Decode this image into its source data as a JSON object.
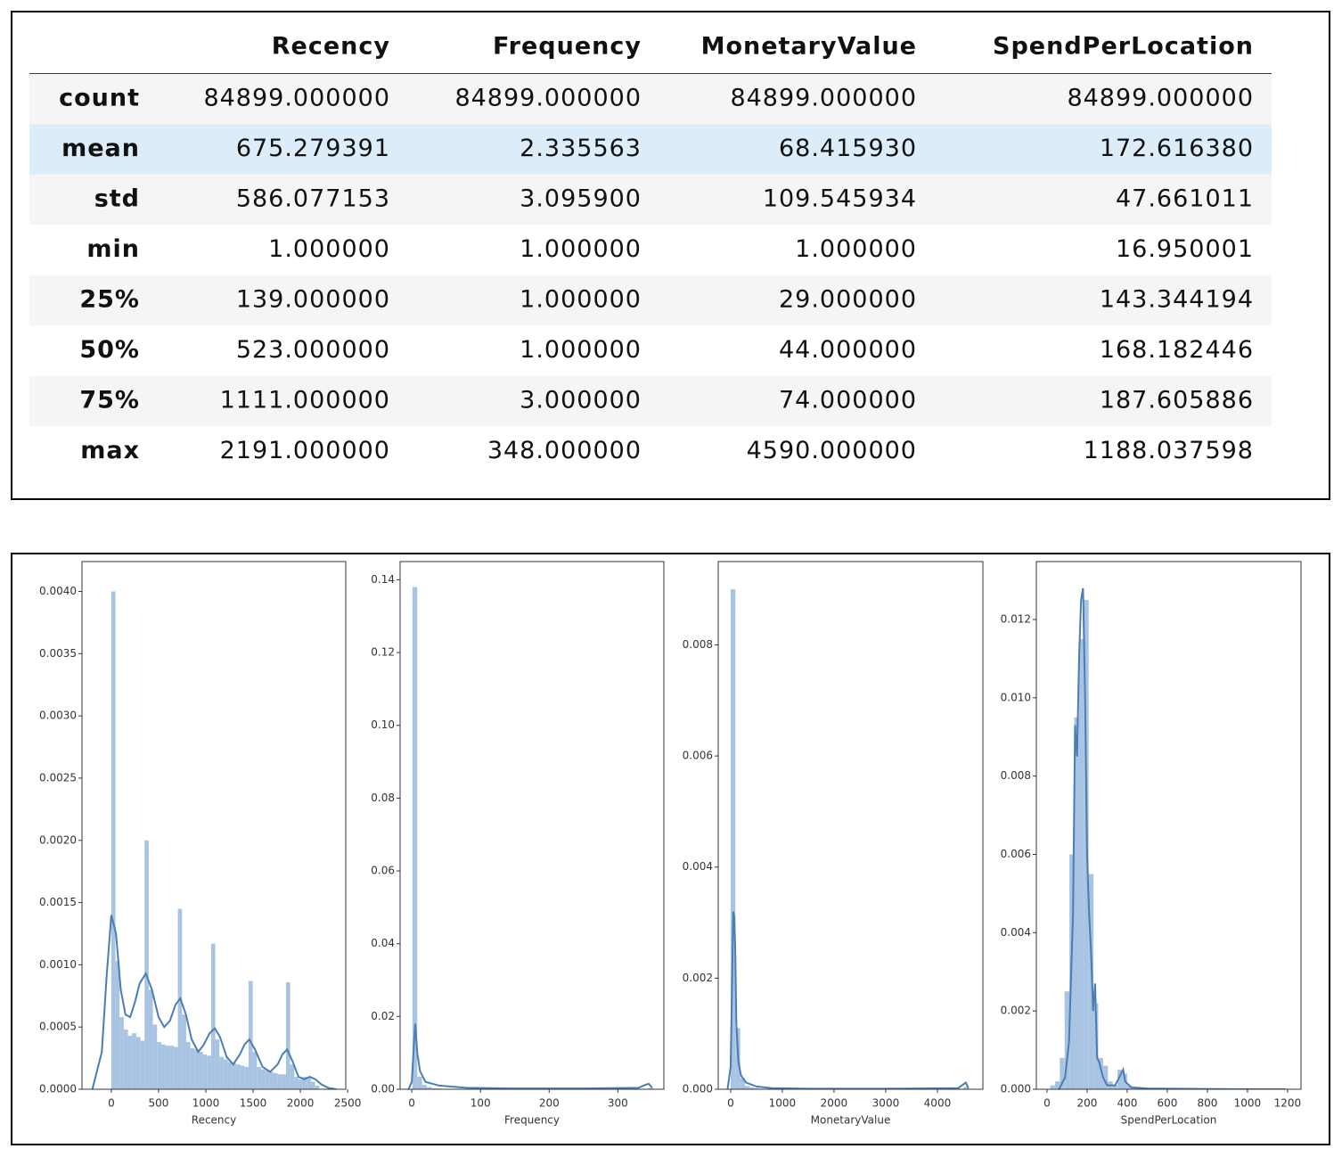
{
  "table": {
    "columns": [
      "Recency",
      "Frequency",
      "MonetaryValue",
      "SpendPerLocation"
    ],
    "rows": [
      {
        "label": "count",
        "values": [
          "84899.000000",
          "84899.000000",
          "84899.000000",
          "84899.000000"
        ]
      },
      {
        "label": "mean",
        "values": [
          "675.279391",
          "2.335563",
          "68.415930",
          "172.616380"
        ]
      },
      {
        "label": "std",
        "values": [
          "586.077153",
          "3.095900",
          "109.545934",
          "47.661011"
        ]
      },
      {
        "label": "min",
        "values": [
          "1.000000",
          "1.000000",
          "1.000000",
          "16.950001"
        ]
      },
      {
        "label": "25%",
        "values": [
          "139.000000",
          "1.000000",
          "29.000000",
          "143.344194"
        ]
      },
      {
        "label": "50%",
        "values": [
          "523.000000",
          "1.000000",
          "44.000000",
          "168.182446"
        ]
      },
      {
        "label": "75%",
        "values": [
          "1111.000000",
          "3.000000",
          "74.000000",
          "187.605886"
        ]
      },
      {
        "label": "max",
        "values": [
          "2191.000000",
          "348.000000",
          "4590.000000",
          "1188.037598"
        ]
      }
    ]
  },
  "chart_data": [
    {
      "type": "histogram",
      "x_label": "Recency",
      "color": "#a8c4e2",
      "bins": [
        0,
        44,
        88,
        132,
        176,
        220,
        264,
        308,
        352,
        396,
        440,
        484,
        528,
        572,
        616,
        660,
        704,
        748,
        792,
        836,
        880,
        924,
        968,
        1012,
        1056,
        1100,
        1144,
        1188,
        1232,
        1276,
        1320,
        1364,
        1408,
        1452,
        1496,
        1540,
        1584,
        1628,
        1672,
        1716,
        1760,
        1804,
        1848,
        1892,
        1936,
        1980,
        2024,
        2068,
        2112,
        2156,
        2200
      ],
      "counts": [
        0.004,
        0.00103,
        0.00058,
        0.00048,
        0.00043,
        0.00045,
        0.00042,
        0.00039,
        0.002,
        0.0008,
        0.00052,
        0.00038,
        0.00036,
        0.00035,
        0.00035,
        0.00034,
        0.00145,
        0.0006,
        0.00038,
        0.00033,
        0.00032,
        0.0003,
        0.00028,
        0.00027,
        0.00117,
        0.0004,
        0.00026,
        0.00024,
        0.00022,
        0.00021,
        0.0002,
        0.00019,
        0.00018,
        0.00087,
        0.0003,
        0.00018,
        0.00016,
        0.00015,
        0.00014,
        0.00013,
        0.00012,
        0.00012,
        0.00086,
        0.0002,
        0.0001,
        8e-05,
        0.0001,
        9e-05,
        6e-05,
        3e-05
      ],
      "kde": {
        "color": "#4a7db4",
        "x": [
          -200,
          -100,
          -50,
          0,
          50,
          100,
          150,
          200,
          250,
          300,
          365,
          430,
          500,
          560,
          620,
          680,
          730,
          790,
          850,
          920,
          980,
          1040,
          1095,
          1150,
          1220,
          1290,
          1360,
          1410,
          1460,
          1520,
          1600,
          1680,
          1760,
          1810,
          1860,
          1920,
          1980,
          2040,
          2100,
          2160,
          2220,
          2300,
          2380
        ],
        "values": [
          0,
          0.0003,
          0.0009,
          0.0014,
          0.00125,
          0.0008,
          0.0006,
          0.00058,
          0.0007,
          0.00085,
          0.00093,
          0.0008,
          0.00058,
          0.0005,
          0.00055,
          0.00068,
          0.00073,
          0.0006,
          0.0004,
          0.0003,
          0.00036,
          0.00045,
          0.00049,
          0.00042,
          0.00026,
          0.0002,
          0.00028,
          0.00036,
          0.0004,
          0.00032,
          0.00018,
          0.00014,
          0.0002,
          0.00028,
          0.00032,
          0.00022,
          0.0001,
          8e-05,
          0.0001,
          8e-05,
          4e-05,
          1e-05,
          0
        ]
      },
      "xlim": [
        -310,
        2480
      ],
      "ylim": [
        0,
        0.00424
      ],
      "xticks": [
        0,
        500,
        1000,
        1500,
        2000,
        2500
      ],
      "yticks": [
        {
          "value": 0,
          "label": "0.0000"
        },
        {
          "value": 0.0005,
          "label": "0.0005"
        },
        {
          "value": 0.001,
          "label": "0.0010"
        },
        {
          "value": 0.0015,
          "label": "0.0015"
        },
        {
          "value": 0.002,
          "label": "0.0020"
        },
        {
          "value": 0.0025,
          "label": "0.0025"
        },
        {
          "value": 0.003,
          "label": "0.0030"
        },
        {
          "value": 0.0035,
          "label": "0.0035"
        },
        {
          "value": 0.004,
          "label": "0.0040"
        }
      ]
    },
    {
      "type": "histogram",
      "x_label": "Frequency",
      "color": "#a8c4e2",
      "bins": [
        1,
        8,
        15,
        22,
        29,
        36,
        43,
        50,
        57,
        64,
        71,
        78,
        85,
        92,
        99,
        106,
        113,
        120,
        127,
        134,
        141,
        148,
        155,
        162,
        169,
        176,
        183,
        190,
        197,
        204,
        211,
        218,
        225,
        232,
        239,
        246,
        253,
        260,
        267,
        274,
        281,
        288,
        295,
        302,
        309,
        316,
        323,
        330,
        337,
        344,
        351
      ],
      "counts": [
        0.138,
        0.0035,
        0.0012,
        0.0006,
        0.0003,
        0.0002,
        0.0001,
        0.0001,
        0.0001,
        0,
        0,
        0,
        0,
        0,
        0,
        0,
        0,
        0,
        0,
        0,
        0,
        0,
        0,
        0,
        0,
        0,
        0,
        0,
        0,
        0,
        0,
        0,
        0,
        0,
        0,
        0,
        0,
        0,
        0,
        0,
        0,
        0,
        0,
        0,
        0,
        0,
        0,
        0,
        0,
        0.0003
      ],
      "kde": {
        "color": "#4a7db4",
        "x": [
          -5,
          0,
          3,
          5,
          8,
          12,
          20,
          40,
          80,
          150,
          250,
          330,
          340,
          345,
          350
        ],
        "values": [
          0,
          0.002,
          0.012,
          0.018,
          0.01,
          0.005,
          0.002,
          0.001,
          0.0004,
          0.0002,
          0.0002,
          0.0004,
          0.0012,
          0.0015,
          0.0004
        ]
      },
      "xlim": [
        -17,
        367
      ],
      "ylim": [
        0,
        0.145
      ],
      "xticks": [
        0,
        100,
        200,
        300
      ],
      "yticks": [
        {
          "value": 0,
          "label": "0.00"
        },
        {
          "value": 0.02,
          "label": "0.02"
        },
        {
          "value": 0.04,
          "label": "0.04"
        },
        {
          "value": 0.06,
          "label": "0.06"
        },
        {
          "value": 0.08,
          "label": "0.08"
        },
        {
          "value": 0.1,
          "label": "0.10"
        },
        {
          "value": 0.12,
          "label": "0.12"
        },
        0.14
      ]
    },
    {
      "type": "histogram",
      "x_label": "MonetaryValue",
      "color": "#a8c4e2",
      "bins": [
        1,
        93,
        185,
        277,
        369,
        461,
        553,
        645,
        737,
        829,
        921,
        1013,
        1105,
        1197,
        1289,
        1381,
        1473,
        1565,
        1657,
        1749,
        1841,
        1933,
        2025,
        2117,
        2209,
        2301,
        2393,
        2485,
        2577,
        2669,
        2761,
        2853,
        2945,
        3037,
        3129,
        3221,
        3313,
        3405,
        3497,
        3589,
        3681,
        3773,
        3865,
        3957,
        4049,
        4141,
        4233,
        4325,
        4417,
        4509,
        4601
      ],
      "counts": [
        0.009,
        0.0011,
        0.0002,
        6e-05,
        3e-05,
        2e-05,
        1e-05,
        1e-05,
        0,
        0,
        0,
        0,
        0,
        0,
        0,
        0,
        0,
        0,
        0,
        0,
        0,
        0,
        0,
        0,
        0,
        0,
        0,
        0,
        0,
        0,
        0,
        0,
        0,
        0,
        0,
        0,
        0,
        0,
        0,
        0,
        0,
        0,
        0,
        0,
        0,
        0,
        0,
        0,
        1e-05,
        4e-05
      ],
      "kde": {
        "color": "#4a7db4",
        "x": [
          -60,
          0,
          30,
          50,
          70,
          90,
          110,
          150,
          200,
          300,
          500,
          800,
          1500,
          3000,
          4400,
          4550,
          4600
        ],
        "values": [
          0,
          0.0004,
          0.002,
          0.0032,
          0.0031,
          0.0025,
          0.0012,
          0.0005,
          0.00025,
          0.00012,
          5e-05,
          2e-05,
          1e-05,
          1e-05,
          2e-05,
          0.00012,
          2e-05
        ]
      },
      "xlim": [
        -240,
        4880
      ],
      "ylim": [
        0,
        0.0095
      ],
      "xticks": [
        0,
        1000,
        2000,
        3000,
        4000
      ],
      "yticks": [
        {
          "value": 0,
          "label": "0.000"
        },
        0.002,
        0.004,
        0.006,
        0.008
      ]
    },
    {
      "type": "histogram",
      "x_label": "SpendPerLocation",
      "color": "#a8c4e2",
      "bins": [
        16,
        40,
        64,
        88,
        112,
        136,
        160,
        184,
        208,
        232,
        256,
        280,
        304,
        328,
        352,
        376,
        400,
        424,
        448,
        472,
        496,
        520,
        544,
        568,
        592,
        616,
        640,
        664,
        688,
        712,
        736,
        760,
        784,
        808,
        832,
        856,
        880,
        904,
        928,
        952,
        976,
        1000,
        1024,
        1048,
        1072,
        1096,
        1120,
        1144,
        1168,
        1192,
        1216
      ],
      "counts": [
        0.0001,
        0.0002,
        0.0008,
        0.0025,
        0.006,
        0.0095,
        0.0115,
        0.0125,
        0.0055,
        0.0022,
        0.0008,
        0.0006,
        0.0002,
        0.0001,
        0.0005,
        0.0004,
        0.0001,
        5e-05,
        5e-05,
        0,
        0,
        0,
        0,
        0,
        0,
        0,
        0,
        0,
        0,
        0,
        0,
        0,
        0,
        0,
        0,
        0,
        0,
        0,
        0,
        0,
        0,
        0,
        0,
        0,
        0,
        0,
        0,
        0,
        0,
        0
      ],
      "kde": {
        "color": "#4a7db4",
        "x": [
          60,
          90,
          110,
          130,
          140,
          150,
          160,
          170,
          180,
          190,
          200,
          210,
          220,
          230,
          240,
          250,
          260,
          280,
          300,
          340,
          370,
          380,
          390,
          420,
          500,
          700,
          1000,
          1190
        ],
        "values": [
          0,
          0.0003,
          0.0012,
          0.0045,
          0.0093,
          0.0085,
          0.011,
          0.0125,
          0.0128,
          0.01,
          0.006,
          0.0045,
          0.0035,
          0.002,
          0.0027,
          0.0008,
          0.0007,
          0.0003,
          0.0001,
          0.0001,
          0.0004,
          0.0005,
          0.0002,
          5e-05,
          2e-05,
          1e-05,
          0,
          0
        ]
      },
      "xlim": [
        -53,
        1267
      ],
      "ylim": [
        0,
        0.01348
      ],
      "xticks": [
        0,
        200,
        400,
        600,
        800,
        1000,
        1200
      ],
      "yticks": [
        {
          "value": 0,
          "label": "0.000"
        },
        0.002,
        0.004,
        0.006,
        0.008,
        {
          "value": 0.01,
          "label": "0.010"
        },
        0.012
      ]
    }
  ]
}
